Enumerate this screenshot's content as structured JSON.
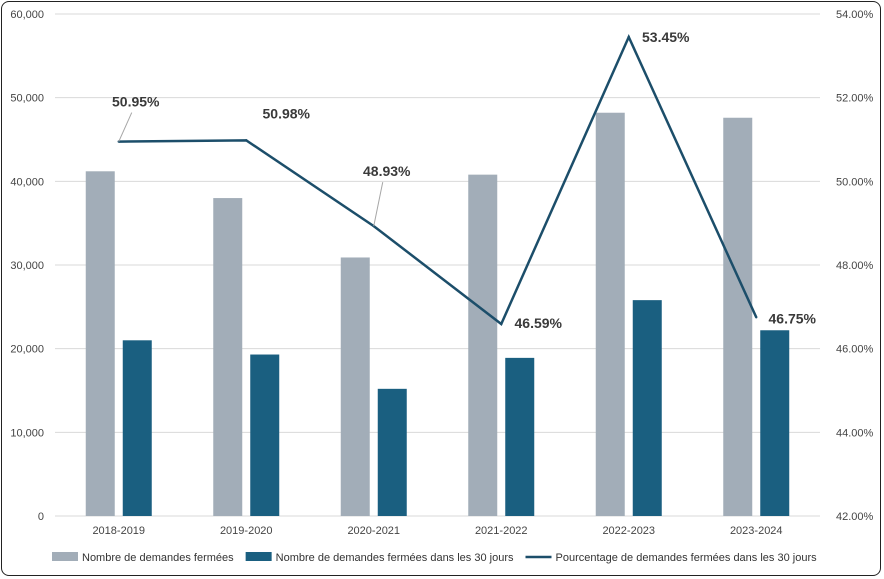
{
  "chart_data": {
    "type": "bar",
    "categories": [
      "2018-2019",
      "2019-2020",
      "2020-2021",
      "2021-2022",
      "2022-2023",
      "2023-2024"
    ],
    "series": [
      {
        "name": "Nombre de demandes fermées",
        "type": "bar",
        "axis": "left",
        "color": "#a2adb8",
        "values": [
          41200,
          38000,
          30900,
          40800,
          48200,
          47600
        ]
      },
      {
        "name": "Nombre de demandes fermées dans les 30 jours",
        "type": "bar",
        "axis": "left",
        "color": "#1a5f80",
        "values": [
          21000,
          19300,
          15200,
          18900,
          25800,
          22200
        ]
      },
      {
        "name": "Pourcentage de demandes fermées dans les 30 jours",
        "type": "line",
        "axis": "right",
        "color": "#1c4e6a",
        "values": [
          50.95,
          50.98,
          48.93,
          46.59,
          53.45,
          46.75
        ],
        "labels": [
          "50.95%",
          "50.98%",
          "48.93%",
          "46.59%",
          "53.45%",
          "46.75%"
        ]
      }
    ],
    "y_left": {
      "min": 0,
      "max": 60000,
      "ticks": [
        "0",
        "10,000",
        "20,000",
        "30,000",
        "40,000",
        "50,000",
        "60,000"
      ]
    },
    "y_right": {
      "min": 42,
      "max": 54,
      "ticks": [
        "42.00%",
        "44.00%",
        "46.00%",
        "48.00%",
        "50.00%",
        "52.00%",
        "54.00%"
      ]
    },
    "grid": true,
    "legend_position": "bottom"
  }
}
